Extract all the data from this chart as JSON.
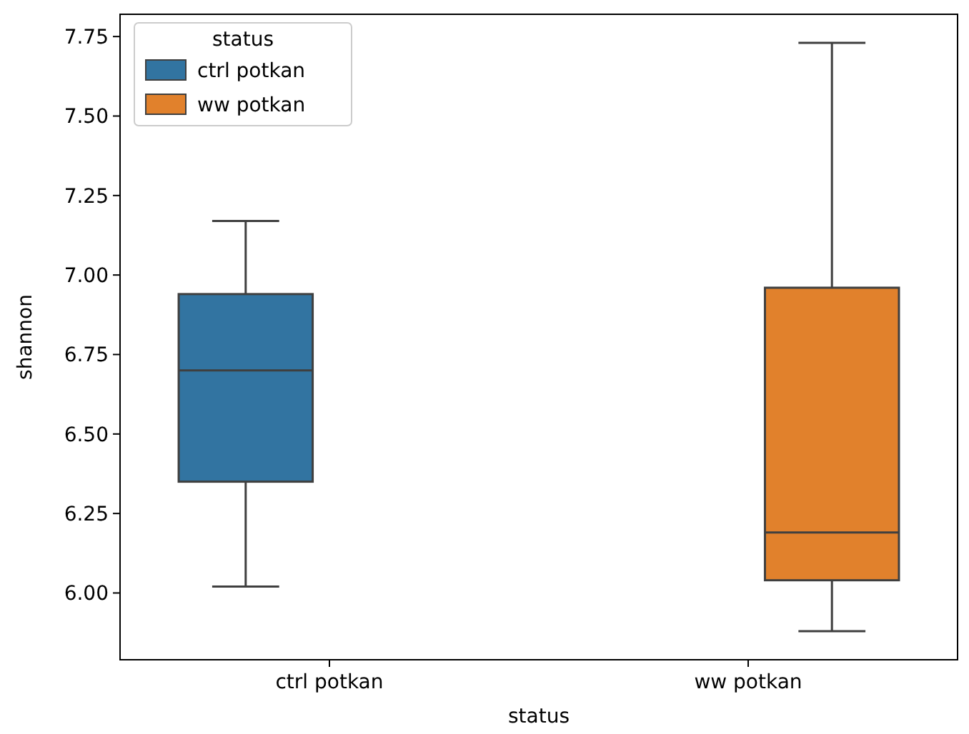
{
  "chart_data": {
    "type": "box",
    "xlabel": "status",
    "ylabel": "shannon",
    "legend_title": "status",
    "legend": "top left",
    "grid": false,
    "categories": [
      "ctrl potkan",
      "ww potkan"
    ],
    "ylim": [
      5.79,
      7.82
    ],
    "yticks": [
      {
        "value": 6,
        "label": "6.00"
      },
      {
        "value": 6.25,
        "label": "6.25"
      },
      {
        "value": 6.5,
        "label": "6.50"
      },
      {
        "value": 6.75,
        "label": "6.75"
      },
      {
        "value": 7,
        "label": "7.00"
      },
      {
        "value": 7.25,
        "label": "7.25"
      },
      {
        "value": 7.5,
        "label": "7.50"
      },
      {
        "value": 7.75,
        "label": "7.75"
      }
    ],
    "series": [
      {
        "name": "ctrl potkan",
        "color": "#3274a1",
        "boxes": [
          {
            "low": 6.02,
            "q1": 6.35,
            "median": 6.7,
            "q3": 6.94,
            "high": 7.17
          },
          null
        ]
      },
      {
        "name": "ww potkan",
        "color": "#e1812c",
        "boxes": [
          null,
          {
            "low": 5.88,
            "q1": 6.04,
            "median": 6.19,
            "q3": 6.96,
            "high": 7.73
          }
        ]
      }
    ]
  }
}
